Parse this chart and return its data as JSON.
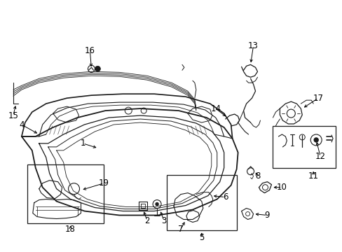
{
  "bg_color": "#ffffff",
  "fig_width": 4.89,
  "fig_height": 3.6,
  "dpi": 100,
  "text_color": "#000000",
  "font_size": 8.5,
  "line_color": "#1a1a1a",
  "line_width": 1.0
}
